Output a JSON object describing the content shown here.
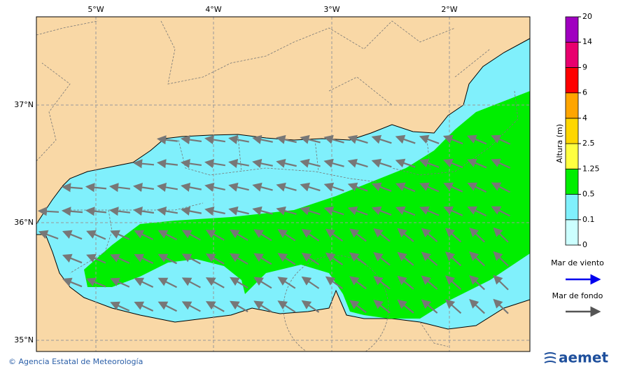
{
  "map": {
    "lon_labels": [
      "5°W",
      "4°W",
      "3°W",
      "2°W"
    ],
    "lat_labels": [
      "37°N",
      "36°N",
      "35°N"
    ],
    "legend": {
      "title": "Altura (m)",
      "levels": [
        0,
        0.1,
        0.5,
        1.25,
        2.5,
        4,
        6,
        9,
        14,
        20
      ],
      "colors": [
        "#ccffff",
        "#80f0fc",
        "#00ee00",
        "#ffff40",
        "#ffd700",
        "#ffa500",
        "#ff0000",
        "#e8006e",
        "#a000c0"
      ],
      "wind_sea": "Mar de viento",
      "wind_sea_color": "#0000ee",
      "swell": "Mar de fondo",
      "swell_color": "#555555"
    }
  },
  "footer": {
    "credit": "© Agencia Estatal de Meteorología",
    "logo": "aemet"
  }
}
